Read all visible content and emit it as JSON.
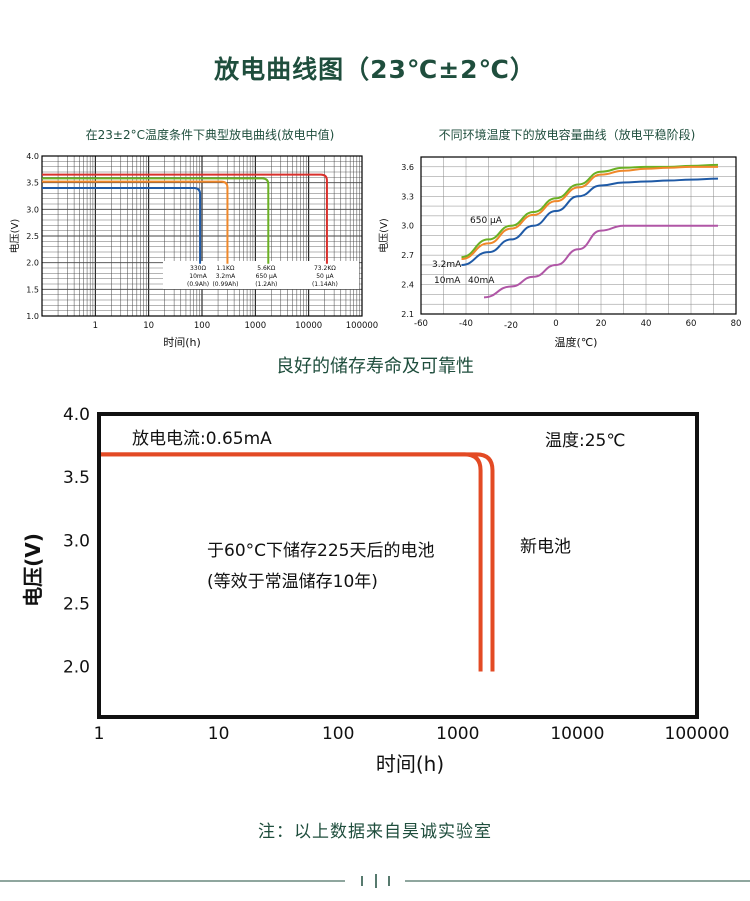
{
  "page": {
    "title": "放电曲线图（23℃±2℃）",
    "section_title": "良好的储存寿命及可靠性",
    "note": "注：以上数据来自昊诚实验室"
  },
  "colors": {
    "green_text": "#1f4e3d",
    "red": "#d9302c",
    "green": "#6ab023",
    "orange": "#f0882a",
    "blue": "#1f5aa6",
    "purple": "#b056a6",
    "storage_red": "#e34a24"
  },
  "chart_data": [
    {
      "type": "line",
      "title": "在23±2°C温度条件下典型放电曲线(放电中值)",
      "xlabel": "时间(h)",
      "ylabel": "电压(V)",
      "x_scale": "log",
      "xlim": [
        0.1,
        100000
      ],
      "ylim": [
        1.0,
        4.0
      ],
      "x_ticks": [
        "1",
        "10",
        "100",
        "1000",
        "10000",
        "100000"
      ],
      "y_ticks": [
        "1.0",
        "1.5",
        "2.0",
        "2.5",
        "3.0",
        "3.5",
        "4.0"
      ],
      "grid": true,
      "series": [
        {
          "label": [
            "330Ω",
            "10mA",
            "(0.9Ah)"
          ],
          "color": "#1f5aa6",
          "plateau": 3.4,
          "end": 92
        },
        {
          "label": [
            "1.1KΩ",
            "3.2mA",
            "(0.99Ah)"
          ],
          "color": "#f0882a",
          "plateau": 3.52,
          "end": 300
        },
        {
          "label": [
            "5.6KΩ",
            "650 μA",
            "(1.2Ah)"
          ],
          "color": "#6ab023",
          "plateau": 3.58,
          "end": 1750
        },
        {
          "label": [
            "73.2KΩ",
            "50 μA",
            "(1.14Ah)"
          ],
          "color": "#d9302c",
          "plateau": 3.65,
          "end": 22000
        }
      ]
    },
    {
      "type": "line",
      "title": "不同环境温度下的放电容量曲线（放电平稳阶段)",
      "xlabel": "温度(℃)",
      "ylabel": "电压(V)",
      "xlim": [
        -60,
        80
      ],
      "ylim": [
        2.1,
        3.7
      ],
      "x_ticks": [
        "-60",
        "-40",
        "-20",
        "0",
        "20",
        "40",
        "60",
        "80"
      ],
      "y_ticks": [
        "2.1",
        "2.4",
        "2.7",
        "3.0",
        "3.3",
        "3.6"
      ],
      "grid": true,
      "series": [
        {
          "label": "650 μA",
          "color": "#6ab023",
          "x": [
            -42,
            -30,
            -20,
            -10,
            0,
            10,
            20,
            30,
            40,
            50,
            60,
            72
          ],
          "y": [
            2.68,
            2.86,
            3.0,
            3.14,
            3.28,
            3.42,
            3.55,
            3.59,
            3.6,
            3.6,
            3.61,
            3.62
          ]
        },
        {
          "label": "3.2mA",
          "color": "#f0882a",
          "x": [
            -42,
            -30,
            -20,
            -10,
            0,
            10,
            20,
            30,
            40,
            50,
            60,
            72
          ],
          "y": [
            2.66,
            2.82,
            2.97,
            3.11,
            3.25,
            3.39,
            3.52,
            3.56,
            3.58,
            3.59,
            3.6,
            3.6
          ]
        },
        {
          "label": "10mA",
          "color": "#1f5aa6",
          "x": [
            -42,
            -30,
            -20,
            -10,
            0,
            10,
            20,
            30,
            40,
            50,
            60,
            72
          ],
          "y": [
            2.6,
            2.73,
            2.86,
            3.0,
            3.15,
            3.3,
            3.41,
            3.44,
            3.45,
            3.46,
            3.47,
            3.48
          ]
        },
        {
          "label": "40mA",
          "color": "#b056a6",
          "x": [
            -32,
            -20,
            -10,
            0,
            10,
            20,
            30,
            40,
            50,
            60,
            72
          ],
          "y": [
            2.27,
            2.38,
            2.48,
            2.6,
            2.76,
            2.95,
            3.0,
            3.0,
            3.0,
            3.0,
            3.0
          ]
        }
      ]
    },
    {
      "type": "line",
      "annotations": {
        "current": "放电电流:0.65mA",
        "temperature": "温度:25℃",
        "stored": "于60°C下储存225天后的电池",
        "stored_note": "(等效于常温储存10年)",
        "new": "新电池"
      },
      "xlabel": "时间(h)",
      "ylabel": "电压(V)",
      "x_scale": "log",
      "xlim": [
        1,
        100000
      ],
      "ylim": [
        1.6,
        4.0
      ],
      "x_ticks": [
        "1",
        "10",
        "100",
        "1000",
        "10000",
        "100000"
      ],
      "y_ticks": [
        "2.0",
        "2.5",
        "3.0",
        "3.5",
        "4.0"
      ],
      "grid": false,
      "series": [
        {
          "label": "于60°C下储存225天后的电池",
          "color": "#e34a24",
          "plateau": 3.68,
          "end": 1550
        },
        {
          "label": "新电池",
          "color": "#e34a24",
          "plateau": 3.68,
          "end": 1950
        }
      ]
    }
  ]
}
